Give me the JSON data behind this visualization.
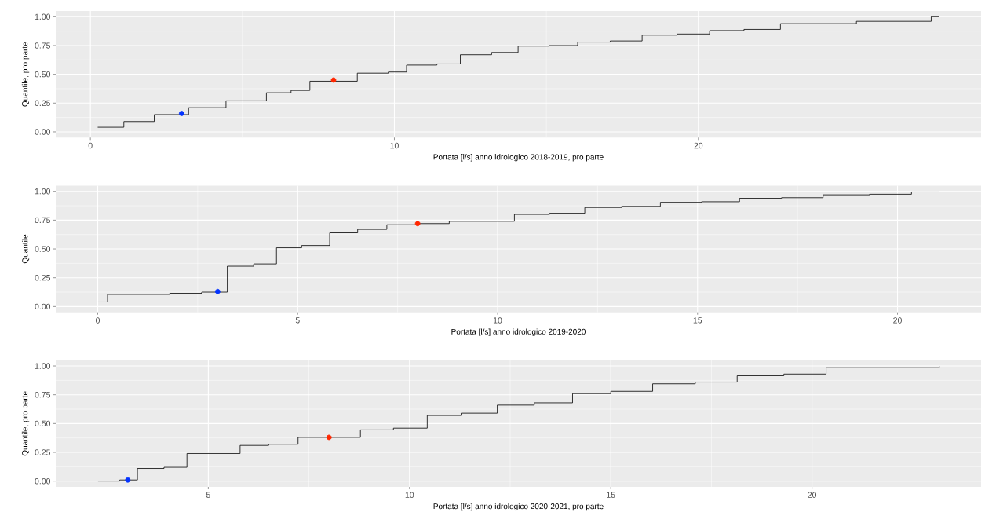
{
  "chart_data": [
    {
      "type": "step",
      "xlabel": "Portata [l/s] anno idrologico 2018-2019, pro parte",
      "ylabel": "Quantile, pro parte",
      "xlim": [
        -1.14,
        29.3
      ],
      "ylim": [
        -0.05,
        1.05
      ],
      "xticks": [
        0,
        10,
        20
      ],
      "yticks": [
        {
          "value": 0,
          "label": "0.00"
        },
        {
          "value": 0.25,
          "label": "0.25"
        },
        {
          "value": 0.5,
          "label": "0.50"
        },
        {
          "value": 0.75,
          "label": "0.75"
        },
        {
          "value": 1,
          "label": "1.00"
        }
      ],
      "grid": true,
      "series": [
        {
          "color": "#000000",
          "x": [
            0.24,
            1.1,
            2.1,
            3.23,
            4.46,
            5.79,
            6.6,
            7.22,
            8.78,
            9.8,
            10.4,
            11.4,
            12.17,
            13.2,
            14.07,
            15.1,
            16.03,
            17.1,
            18.15,
            19.3,
            20.37,
            21.5,
            22.7,
            25.2,
            27.66,
            27.92
          ],
          "values": [
            0.04,
            0.09,
            0.15,
            0.21,
            0.27,
            0.34,
            0.36,
            0.44,
            0.51,
            0.52,
            0.58,
            0.59,
            0.67,
            0.69,
            0.745,
            0.75,
            0.78,
            0.79,
            0.84,
            0.85,
            0.88,
            0.89,
            0.94,
            0.96,
            1.0,
            1.0
          ]
        },
        {
          "type": "scatter",
          "marker": "circle",
          "color": "#0433ff",
          "x": [
            3
          ],
          "values": [
            0.16
          ]
        },
        {
          "type": "scatter",
          "marker": "circle",
          "color": "#ff2600",
          "x": [
            8
          ],
          "values": [
            0.45
          ]
        }
      ]
    },
    {
      "type": "step",
      "xlabel": "Portata [l/s] anno idrologico 2019-2020",
      "ylabel": "Quantile",
      "xlim": [
        -1.05,
        22.09
      ],
      "ylim": [
        -0.05,
        1.05
      ],
      "xticks": [
        0,
        5,
        10,
        15,
        20
      ],
      "yticks": [
        {
          "value": 0,
          "label": "0.00"
        },
        {
          "value": 0.25,
          "label": "0.25"
        },
        {
          "value": 0.5,
          "label": "0.50"
        },
        {
          "value": 0.75,
          "label": "0.75"
        },
        {
          "value": 1,
          "label": "1.00"
        }
      ],
      "grid": true,
      "series": [
        {
          "color": "#000000",
          "x": [
            0,
            0.245,
            1.8,
            2.6,
            3.24,
            3.9,
            4.47,
            5.1,
            5.8,
            6.5,
            7.23,
            8.0,
            8.79,
            10.42,
            11.3,
            12.18,
            13.1,
            14.07,
            15.1,
            16.05,
            17.1,
            18.14,
            19.3,
            20.35,
            21.04
          ],
          "values": [
            0.04,
            0.105,
            0.115,
            0.125,
            0.35,
            0.37,
            0.51,
            0.53,
            0.64,
            0.67,
            0.71,
            0.72,
            0.74,
            0.8,
            0.81,
            0.86,
            0.87,
            0.905,
            0.91,
            0.94,
            0.945,
            0.97,
            0.975,
            0.995,
            1.0
          ]
        },
        {
          "type": "scatter",
          "marker": "circle",
          "color": "#0433ff",
          "x": [
            3
          ],
          "values": [
            0.13
          ]
        },
        {
          "type": "scatter",
          "marker": "circle",
          "color": "#ff2600",
          "x": [
            8
          ],
          "values": [
            0.72
          ]
        }
      ]
    },
    {
      "type": "step",
      "xlabel": "Portata [l/s] anno idrologico 2020-2021, pro parte",
      "ylabel": "Quantile, pro parte",
      "xlim": [
        1.21,
        24.2
      ],
      "ylim": [
        -0.05,
        1.05
      ],
      "xticks": [
        5,
        10,
        15,
        20
      ],
      "yticks": [
        {
          "value": 0,
          "label": "0.00"
        },
        {
          "value": 0.25,
          "label": "0.25"
        },
        {
          "value": 0.5,
          "label": "0.50"
        },
        {
          "value": 0.75,
          "label": "0.75"
        },
        {
          "value": 1,
          "label": "1.00"
        }
      ],
      "grid": true,
      "series": [
        {
          "color": "#000000",
          "x": [
            2.26,
            2.8,
            3.24,
            3.9,
            4.47,
            5.79,
            6.5,
            7.23,
            8.78,
            9.6,
            10.44,
            11.3,
            12.18,
            13.1,
            14.05,
            15.0,
            16.04,
            17.1,
            18.14,
            19.3,
            20.35,
            23.16
          ],
          "values": [
            0.0,
            0.01,
            0.11,
            0.12,
            0.24,
            0.31,
            0.32,
            0.38,
            0.445,
            0.46,
            0.57,
            0.59,
            0.66,
            0.68,
            0.76,
            0.78,
            0.845,
            0.86,
            0.915,
            0.93,
            0.985,
            1.0
          ]
        },
        {
          "type": "scatter",
          "marker": "circle",
          "color": "#0433ff",
          "x": [
            3
          ],
          "values": [
            0.01
          ]
        },
        {
          "type": "scatter",
          "marker": "circle",
          "color": "#ff2600",
          "x": [
            8
          ],
          "values": [
            0.38
          ]
        }
      ]
    }
  ]
}
